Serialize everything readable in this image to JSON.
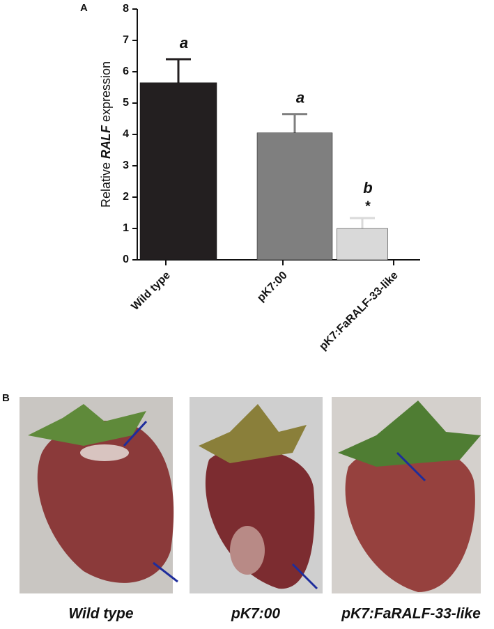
{
  "chart_data": {
    "type": "bar",
    "ylabel_parts": [
      "Relative ",
      "RALF",
      " expression"
    ],
    "categories": [
      "Wild type",
      "pK7:00",
      "pK7:FaRALF-33-like"
    ],
    "values": [
      5.65,
      4.05,
      1.0
    ],
    "errors": [
      0.75,
      0.6,
      0.33
    ],
    "colors": [
      "#231f20",
      "#7f7f7f",
      "#d9d9d9"
    ],
    "significance_letters": [
      "a",
      "a",
      "b"
    ],
    "asterisk": "*",
    "ylim": [
      0,
      8
    ],
    "yticks": [
      0,
      1,
      2,
      3,
      4,
      5,
      6,
      7,
      8
    ]
  },
  "panels": {
    "a_label": "A",
    "b_label": "B",
    "photo_captions": [
      "Wild type",
      "pK7:00",
      "pK7:FaRALF-33-like"
    ]
  }
}
